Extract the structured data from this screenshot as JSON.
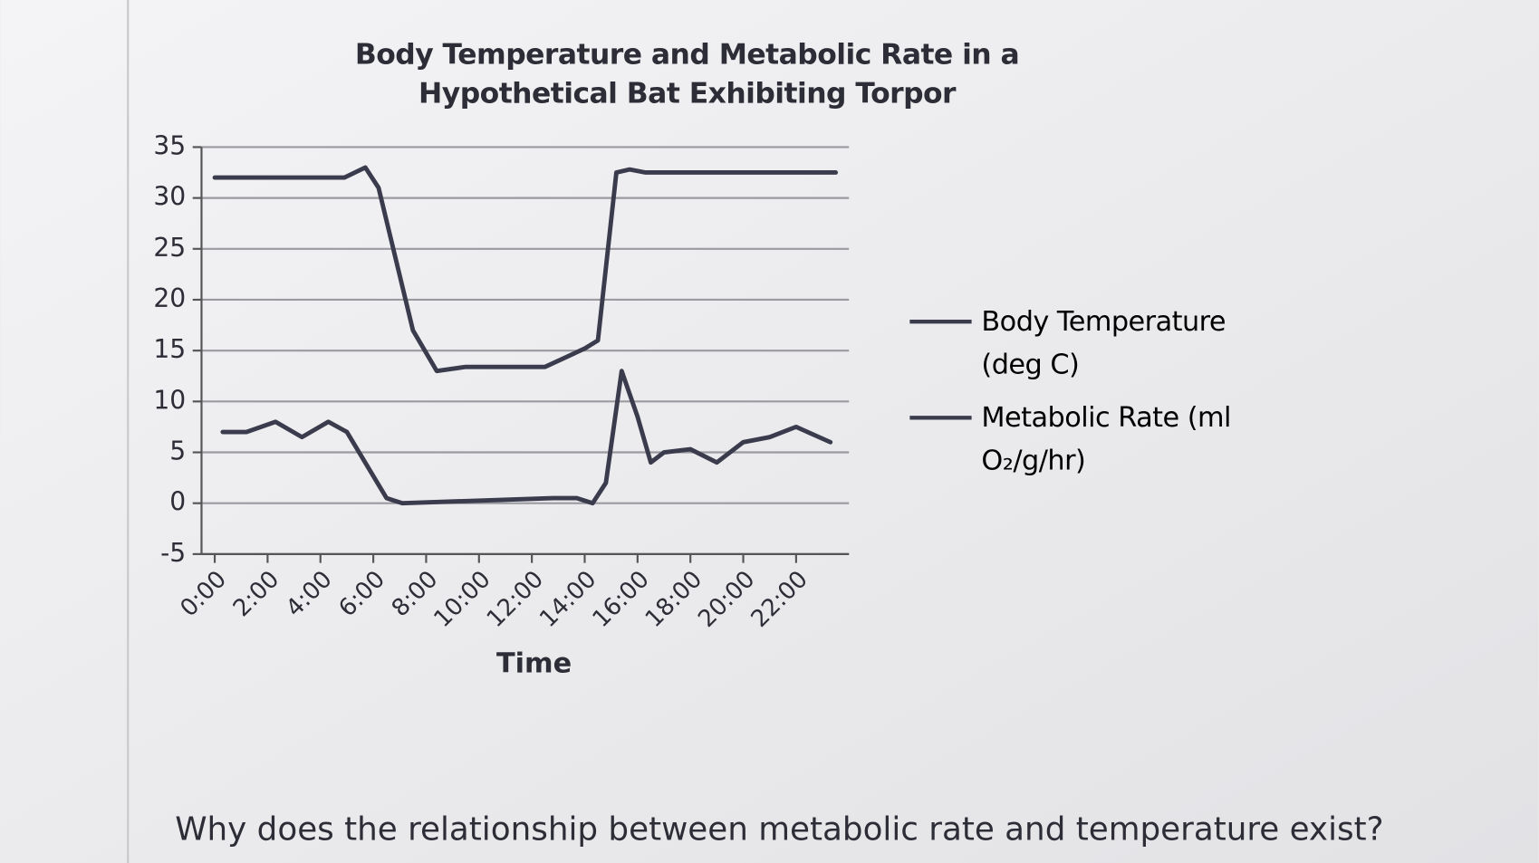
{
  "chart_data": {
    "type": "line",
    "title": "Body Temperature and Metabolic Rate in a Hypothetical Bat Exhibiting Torpor",
    "x_label": "Time",
    "xlim": [
      -0.5,
      24
    ],
    "xticks": [
      {
        "value": 0,
        "label": "0:00"
      },
      {
        "value": 2,
        "label": "2:00"
      },
      {
        "value": 4,
        "label": "4:00"
      },
      {
        "value": 6,
        "label": "6:00"
      },
      {
        "value": 8,
        "label": "8:00"
      },
      {
        "value": 10,
        "label": "10:00"
      },
      {
        "value": 12,
        "label": "12:00"
      },
      {
        "value": 14,
        "label": "14:00"
      },
      {
        "value": 16,
        "label": "16:00"
      },
      {
        "value": 18,
        "label": "18:00"
      },
      {
        "value": 20,
        "label": "20:00"
      },
      {
        "value": 22,
        "label": "22:00"
      }
    ],
    "ylim": [
      -5,
      35
    ],
    "yticks": [
      -5,
      0,
      5,
      10,
      15,
      20,
      25,
      30,
      35
    ],
    "grid": true,
    "legend": "right",
    "series": [
      {
        "name": "Body Temperature (deg C)",
        "color": "#3a3b4c",
        "x": [
          0,
          4.9,
          5.7,
          6.2,
          7.5,
          8.4,
          9.5,
          12.5,
          14,
          14.5,
          15.2,
          15.7,
          16.3,
          23.5
        ],
        "values": [
          32,
          32,
          33,
          31,
          17,
          13,
          13.4,
          13.4,
          15.2,
          16,
          32.5,
          32.8,
          32.5,
          32.5
        ]
      },
      {
        "name": "Metabolic Rate (ml O₂/g/hr)",
        "color": "#3a3b4c",
        "x": [
          0.3,
          1.2,
          2.3,
          3.3,
          4.3,
          5,
          6.5,
          7.1,
          12.8,
          13.7,
          14.3,
          14.8,
          15.4,
          16,
          16.5,
          17,
          18,
          19,
          20,
          21,
          22,
          23.3
        ],
        "values": [
          7,
          7,
          8,
          6.5,
          8,
          7,
          0.5,
          0,
          0.5,
          0.5,
          0,
          2,
          13,
          8.5,
          4,
          5,
          5.3,
          4,
          6,
          6.5,
          7.5,
          6
        ]
      }
    ]
  },
  "question": "Why does the relationship between metabolic rate and temperature exist?"
}
